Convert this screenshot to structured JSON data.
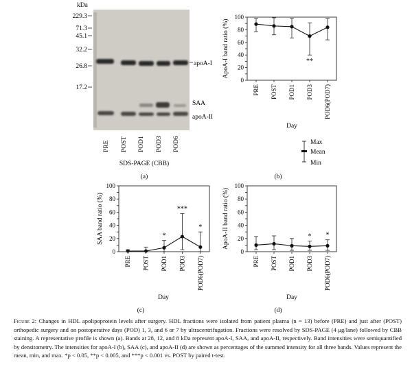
{
  "panels": [
    {
      "id": "a",
      "label": "(a)",
      "kda_label": "kDa",
      "markers": [
        "229.3",
        "71.3",
        "45.1",
        "32.2",
        "26.8",
        "17.2"
      ],
      "band_labels": [
        "apoA-I",
        "SAA",
        "apoA-II"
      ],
      "lanes": [
        "PRE",
        "POST",
        "POD1",
        "POD3",
        "POD6"
      ],
      "gel_caption": "SDS-PAGE (CBB)"
    },
    {
      "id": "b",
      "label": "(b)",
      "legend": {
        "max": "Max",
        "mean": "Mean",
        "min": "Min"
      }
    },
    {
      "id": "c",
      "label": "(c)"
    },
    {
      "id": "d",
      "label": "(d)"
    }
  ],
  "chart_data": [
    {
      "type": "line",
      "panel": "b",
      "ylabel": "ApoA-I band ratio (%)",
      "xlabel": "Day",
      "categories": [
        "PRE",
        "POST",
        "POD1",
        "POD3",
        "POD6(POD7)"
      ],
      "ylim": [
        0,
        100
      ],
      "yticks": [
        0,
        10,
        20,
        30,
        40,
        50,
        60,
        70,
        80,
        90,
        100
      ],
      "series": [
        {
          "mean": [
            89,
            86,
            85,
            70,
            84
          ],
          "max": [
            98,
            99,
            98,
            91,
            98
          ],
          "min": [
            77,
            72,
            67,
            40,
            64
          ]
        }
      ],
      "annotations": [
        "",
        "",
        "",
        "**",
        ""
      ]
    },
    {
      "type": "line",
      "panel": "c",
      "ylabel": "SAA band ratio (%)",
      "xlabel": "Day",
      "categories": [
        "PRE",
        "POST",
        "POD1",
        "POD3",
        "POD6(POD7)"
      ],
      "ylim": [
        0,
        100
      ],
      "yticks": [
        0,
        10,
        20,
        30,
        40,
        50,
        60,
        70,
        80,
        90,
        100
      ],
      "series": [
        {
          "mean": [
            1,
            1,
            6,
            23,
            7
          ],
          "max": [
            3,
            7,
            17,
            58,
            30
          ],
          "min": [
            0,
            0,
            0,
            3,
            0
          ]
        }
      ],
      "annotations": [
        "",
        "",
        "*",
        "***",
        "*"
      ]
    },
    {
      "type": "line",
      "panel": "d",
      "ylabel": "ApoA-II band ratio (%)",
      "xlabel": "Day",
      "categories": [
        "PRE",
        "POST",
        "POD1",
        "POD3",
        "POD6(POD7)"
      ],
      "ylim": [
        0,
        100
      ],
      "yticks": [
        0,
        10,
        20,
        30,
        40,
        50,
        60,
        70,
        80,
        90,
        100
      ],
      "series": [
        {
          "mean": [
            10,
            12,
            9,
            8,
            9
          ],
          "max": [
            23,
            24,
            20,
            16,
            18
          ],
          "min": [
            3,
            3,
            2,
            2,
            2
          ]
        }
      ],
      "annotations": [
        "",
        "",
        "",
        "*",
        "*"
      ]
    }
  ],
  "caption": {
    "figure_label": "Figure 2:",
    "text": "Changes in HDL apolipoprotein levels after surgery. HDL fractions were isolated from patient plasma (n = 13) before (PRE) and just after (POST) orthopedic surgery and on postoperative days (POD) 1, 3, and 6 or 7 by ultracentrifugation. Fractions were resolved by SDS-PAGE (4 μg/lane) followed by CBB staining. A representative profile is shown (a). Bands at 28, 12, and 8 kDa represent apoA-I, SAA, and apoA-II, respectively. Band intensities were semiquantified by densitometry. The intensities for apoA-I (b), SAA (c), and apoA-II (d) are shown as percentages of the summed intensity for all three bands. Values represent the mean, min, and max. *p < 0.05, **p < 0.005, and ***p < 0.001 vs. POST by paired t-test."
  }
}
